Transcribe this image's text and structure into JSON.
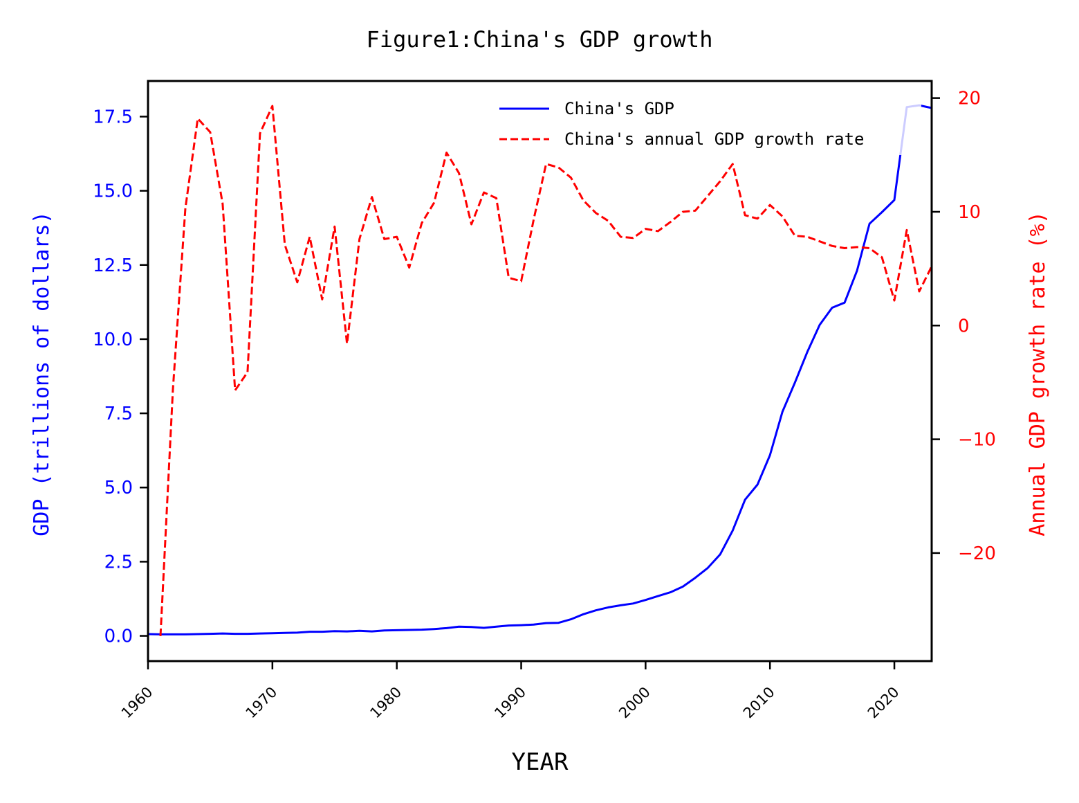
{
  "chart_data": {
    "type": "line",
    "title": "Figure1:China's GDP growth",
    "xlabel": "YEAR",
    "ylabel_left": "GDP (trillions of dollars)",
    "ylabel_right": "Annual GDP growth rate (%)",
    "xlim": [
      1960,
      2023
    ],
    "ylim_left": [
      -0.85,
      18.7
    ],
    "ylim_right": [
      -29.5,
      21.5
    ],
    "x_ticks": [
      1960,
      1970,
      1980,
      1990,
      2000,
      2010,
      2020
    ],
    "x_tick_labels": [
      "1960",
      "1970",
      "1980",
      "1990",
      "2000",
      "2010",
      "2020"
    ],
    "y_left_ticks": [
      0.0,
      2.5,
      5.0,
      7.5,
      10.0,
      12.5,
      15.0,
      17.5
    ],
    "y_left_tick_labels": [
      "0.0",
      "2.5",
      "5.0",
      "7.5",
      "10.0",
      "12.5",
      "15.0",
      "17.5"
    ],
    "y_right_ticks": [
      -20,
      -10,
      0,
      10,
      20
    ],
    "y_right_tick_labels": [
      "−20",
      "−10",
      "0",
      "10",
      "20"
    ],
    "grid": false,
    "legend_position": "top-right",
    "colors": {
      "gdp": "#0000ff",
      "growth": "#ff0000",
      "axis": "#000000"
    },
    "series": [
      {
        "name": "China's GDP",
        "axis": "left",
        "style": "solid",
        "x": [
          1960,
          1961,
          1962,
          1963,
          1964,
          1965,
          1966,
          1967,
          1968,
          1969,
          1970,
          1971,
          1972,
          1973,
          1974,
          1975,
          1976,
          1977,
          1978,
          1979,
          1980,
          1981,
          1982,
          1983,
          1984,
          1985,
          1986,
          1987,
          1988,
          1989,
          1990,
          1991,
          1992,
          1993,
          1994,
          1995,
          1996,
          1997,
          1998,
          1999,
          2000,
          2001,
          2002,
          2003,
          2004,
          2005,
          2006,
          2007,
          2008,
          2009,
          2010,
          2011,
          2012,
          2013,
          2014,
          2015,
          2016,
          2017,
          2018,
          2019,
          2020,
          2021,
          2022,
          2023
        ],
        "y": [
          0.06,
          0.05,
          0.05,
          0.05,
          0.06,
          0.07,
          0.08,
          0.07,
          0.07,
          0.08,
          0.09,
          0.1,
          0.11,
          0.14,
          0.14,
          0.16,
          0.15,
          0.17,
          0.15,
          0.18,
          0.19,
          0.2,
          0.21,
          0.23,
          0.26,
          0.31,
          0.3,
          0.27,
          0.31,
          0.35,
          0.36,
          0.38,
          0.43,
          0.44,
          0.56,
          0.73,
          0.86,
          0.96,
          1.03,
          1.09,
          1.21,
          1.34,
          1.47,
          1.66,
          1.96,
          2.29,
          2.75,
          3.55,
          4.59,
          5.1,
          6.09,
          7.55,
          8.53,
          9.57,
          10.48,
          11.06,
          11.23,
          12.31,
          13.89,
          14.28,
          14.69,
          17.82,
          17.88,
          17.79
        ]
      },
      {
        "name": "China's annual GDP growth rate",
        "axis": "right",
        "style": "dashed",
        "x": [
          1961,
          1962,
          1963,
          1964,
          1965,
          1966,
          1967,
          1968,
          1969,
          1970,
          1971,
          1972,
          1973,
          1974,
          1975,
          1976,
          1977,
          1978,
          1979,
          1980,
          1981,
          1982,
          1983,
          1984,
          1985,
          1986,
          1987,
          1988,
          1989,
          1990,
          1991,
          1992,
          1993,
          1994,
          1995,
          1996,
          1997,
          1998,
          1999,
          2000,
          2001,
          2002,
          2003,
          2004,
          2005,
          2006,
          2007,
          2008,
          2009,
          2010,
          2011,
          2012,
          2013,
          2014,
          2015,
          2016,
          2017,
          2018,
          2019,
          2020,
          2021,
          2022,
          2023
        ],
        "y": [
          -27.3,
          -5.6,
          10.3,
          18.2,
          17.0,
          10.7,
          -5.7,
          -4.1,
          16.9,
          19.3,
          7.1,
          3.8,
          7.8,
          2.3,
          8.7,
          -1.6,
          7.6,
          11.3,
          7.6,
          7.8,
          5.1,
          9.0,
          10.8,
          15.2,
          13.4,
          8.9,
          11.7,
          11.2,
          4.2,
          3.9,
          9.3,
          14.2,
          13.9,
          13.0,
          11.0,
          9.9,
          9.2,
          7.8,
          7.7,
          8.5,
          8.3,
          9.1,
          10.0,
          10.1,
          11.4,
          12.7,
          14.2,
          9.7,
          9.4,
          10.6,
          9.6,
          7.9,
          7.8,
          7.4,
          7.0,
          6.8,
          6.9,
          6.8,
          6.0,
          2.2,
          8.4,
          3.0,
          5.2
        ]
      }
    ]
  }
}
